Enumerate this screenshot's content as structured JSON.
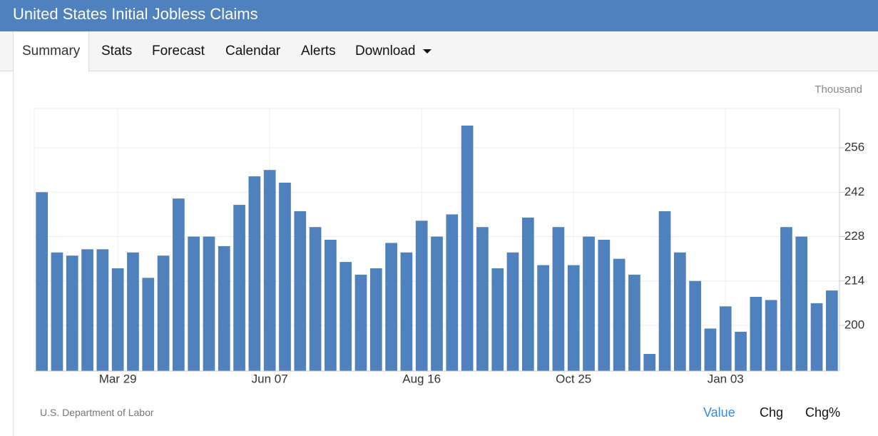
{
  "header": {
    "title": "United States Initial Jobless Claims"
  },
  "tabs": [
    "Summary",
    "Stats",
    "Forecast",
    "Calendar",
    "Alerts",
    "Download"
  ],
  "chart_data": {
    "type": "bar",
    "unit_label": "Thousand",
    "categories": [
      null,
      null,
      null,
      null,
      null,
      "Mar 29",
      null,
      null,
      null,
      null,
      null,
      null,
      null,
      null,
      null,
      "Jun 07",
      null,
      null,
      null,
      null,
      null,
      null,
      null,
      null,
      null,
      "Aug 16",
      null,
      null,
      null,
      null,
      null,
      null,
      null,
      null,
      null,
      "Oct 25",
      null,
      null,
      null,
      null,
      null,
      null,
      null,
      null,
      null,
      "Jan 03",
      null,
      null,
      null,
      null,
      null,
      null,
      null
    ],
    "values": [
      242,
      223,
      222,
      224,
      224,
      218,
      223,
      215,
      222,
      240,
      228,
      228,
      225,
      238,
      247,
      249,
      245,
      236,
      231,
      227,
      220,
      216,
      218,
      226,
      223,
      233,
      228,
      235,
      263,
      231,
      218,
      223,
      234,
      219,
      231,
      219,
      228,
      227,
      221,
      216,
      191,
      236,
      223,
      214,
      199,
      206,
      198,
      209,
      208,
      231,
      228,
      207,
      211
    ],
    "color": "#4f81bd",
    "ylim": [
      185.6,
      268.4
    ],
    "yticks": [
      200,
      214,
      228,
      242,
      256
    ],
    "grid": true
  },
  "source": "U.S. Department of Labor",
  "toggles": [
    "Value",
    "Chg",
    "Chg%"
  ]
}
